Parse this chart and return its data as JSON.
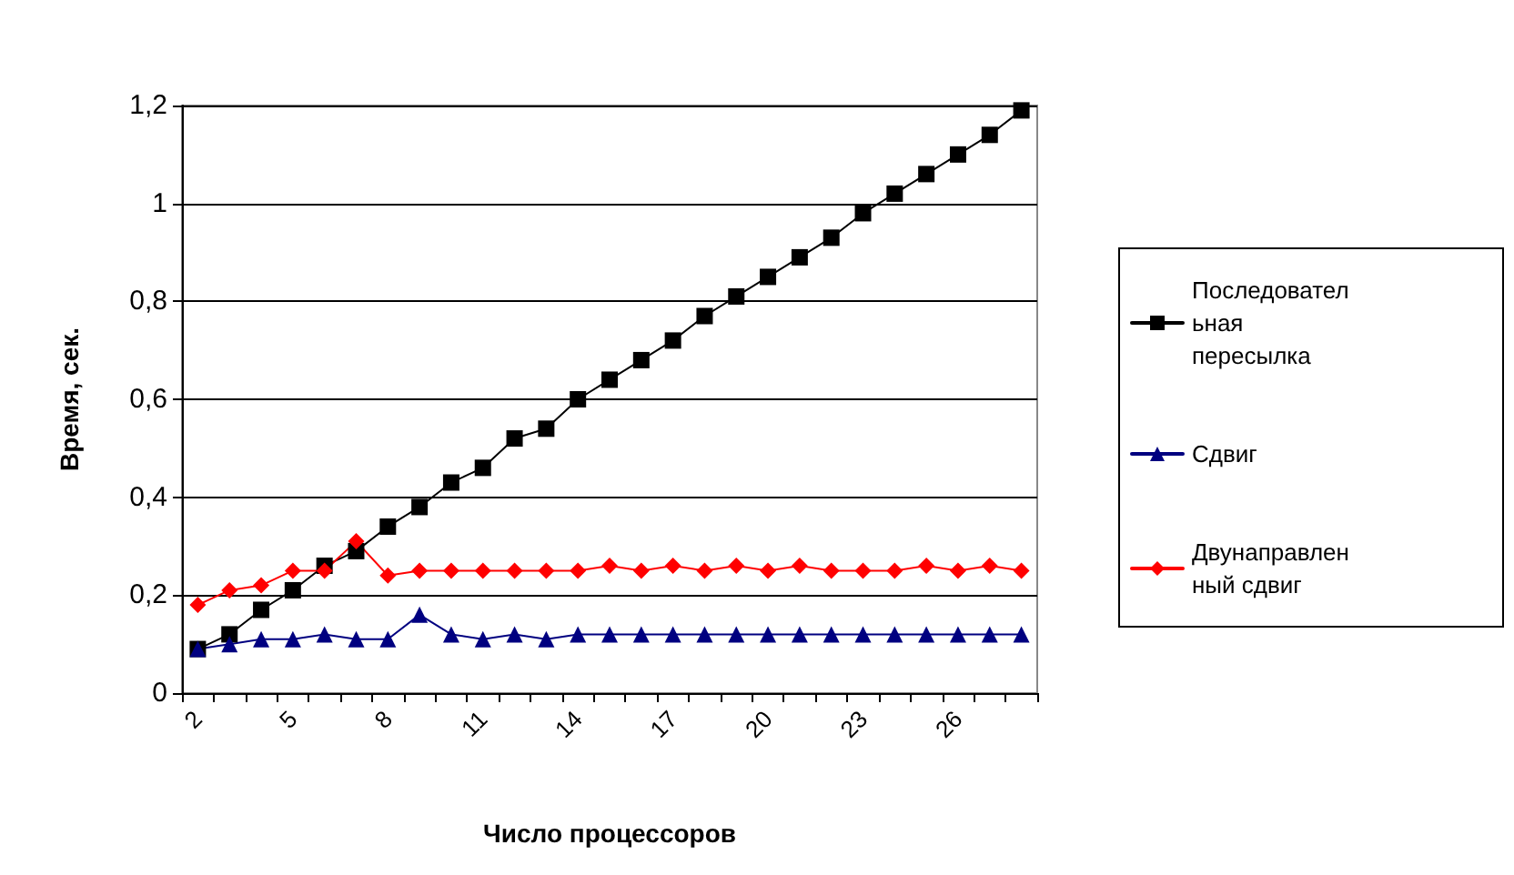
{
  "chart_data": {
    "type": "line",
    "xlabel": "Число процессоров",
    "ylabel": "Время, сек.",
    "categories": [
      "2",
      null,
      null,
      "5",
      null,
      null,
      "8",
      null,
      null,
      "11",
      null,
      null,
      "14",
      null,
      null,
      "17",
      null,
      null,
      "20",
      null,
      null,
      "23",
      null,
      null,
      "26",
      null,
      null
    ],
    "series": [
      {
        "name": "Последовательная пересылка",
        "color": "#000000",
        "marker": "square",
        "values": [
          0.09,
          0.12,
          0.17,
          0.21,
          0.26,
          0.29,
          0.34,
          0.38,
          0.43,
          0.46,
          0.52,
          0.54,
          0.6,
          0.64,
          0.68,
          0.72,
          0.77,
          0.81,
          0.85,
          0.89,
          0.93,
          0.98,
          1.02,
          1.06,
          1.1,
          1.14,
          1.19
        ]
      },
      {
        "name": "Сдвиг",
        "color": "#000080",
        "marker": "triangle",
        "values": [
          0.09,
          0.1,
          0.11,
          0.11,
          0.12,
          0.11,
          0.11,
          0.16,
          0.12,
          0.11,
          0.12,
          0.11,
          0.12,
          0.12,
          0.12,
          0.12,
          0.12,
          0.12,
          0.12,
          0.12,
          0.12,
          0.12,
          0.12,
          0.12,
          0.12,
          0.12,
          0.12
        ]
      },
      {
        "name": "Двунаправленный сдвиг",
        "color": "#ff0000",
        "marker": "diamond",
        "values": [
          0.18,
          0.21,
          0.22,
          0.25,
          0.25,
          0.31,
          0.24,
          0.25,
          0.25,
          0.25,
          0.25,
          0.25,
          0.25,
          0.26,
          0.25,
          0.26,
          0.25,
          0.26,
          0.25,
          0.26,
          0.25,
          0.25,
          0.25,
          0.26,
          0.25,
          0.26,
          0.25
        ]
      }
    ],
    "ylim": [
      0,
      1.2
    ],
    "yticks": [
      0,
      {
        "value": 0.2,
        "label": "0,2"
      },
      {
        "value": 0.4,
        "label": "0,4"
      },
      {
        "value": 0.6,
        "label": "0,6"
      },
      {
        "value": 0.8,
        "label": "0,8"
      },
      1,
      {
        "value": 1.2,
        "label": "1,2"
      }
    ],
    "grid": "y",
    "legend": "right"
  }
}
